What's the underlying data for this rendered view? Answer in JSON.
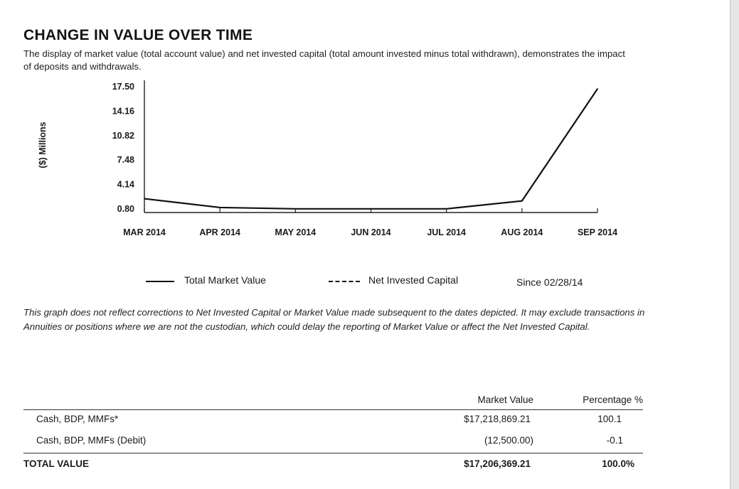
{
  "title": "CHANGE IN VALUE OVER TIME",
  "intro": "The display of market value (total account value) and net invested capital (total amount invested minus total withdrawn), demonstrates the impact of deposits and withdrawals.",
  "chart_data": {
    "type": "line",
    "ylabel": "($) Millions",
    "yticks": [
      "17.50",
      "14.16",
      "10.82",
      "7.48",
      "4.14",
      "0.80"
    ],
    "ylim": [
      0.8,
      17.5
    ],
    "categories": [
      "MAR 2014",
      "APR 2014",
      "MAY 2014",
      "JUN 2014",
      "JUL 2014",
      "AUG 2014",
      "SEP 2014"
    ],
    "series": [
      {
        "name": "Total Market Value",
        "style": "solid",
        "values": [
          2.2,
          1.0,
          0.82,
          0.82,
          0.82,
          1.9,
          17.2
        ]
      },
      {
        "name": "Net Invested Capital",
        "style": "dashed",
        "values": [
          2.2,
          1.0,
          0.82,
          0.82,
          0.82,
          1.9,
          17.2
        ]
      }
    ],
    "legend_position": "bottom",
    "grid": false
  },
  "legend": {
    "market_value": "Total Market Value",
    "net_invested": "Net Invested Capital",
    "since": "Since 02/28/14"
  },
  "note": "This graph does not reflect corrections to Net Invested Capital or Market Value made subsequent to the dates depicted.  It may exclude transactions in Annuities or positions where we are not the custodian, which could delay the reporting of Market Value or affect the Net Invested Capital.",
  "table": {
    "headers": {
      "market_value": "Market Value",
      "percentage": "Percentage %"
    },
    "rows": [
      {
        "label": "Cash, BDP, MMFs*",
        "market_value": "$17,218,869.21",
        "percentage": "100.1"
      },
      {
        "label": "Cash, BDP, MMFs (Debit)",
        "market_value": "(12,500.00)",
        "percentage": "-0.1"
      }
    ],
    "total": {
      "label": "TOTAL VALUE",
      "market_value": "$17,206,369.21",
      "percentage": "100.0%"
    }
  }
}
